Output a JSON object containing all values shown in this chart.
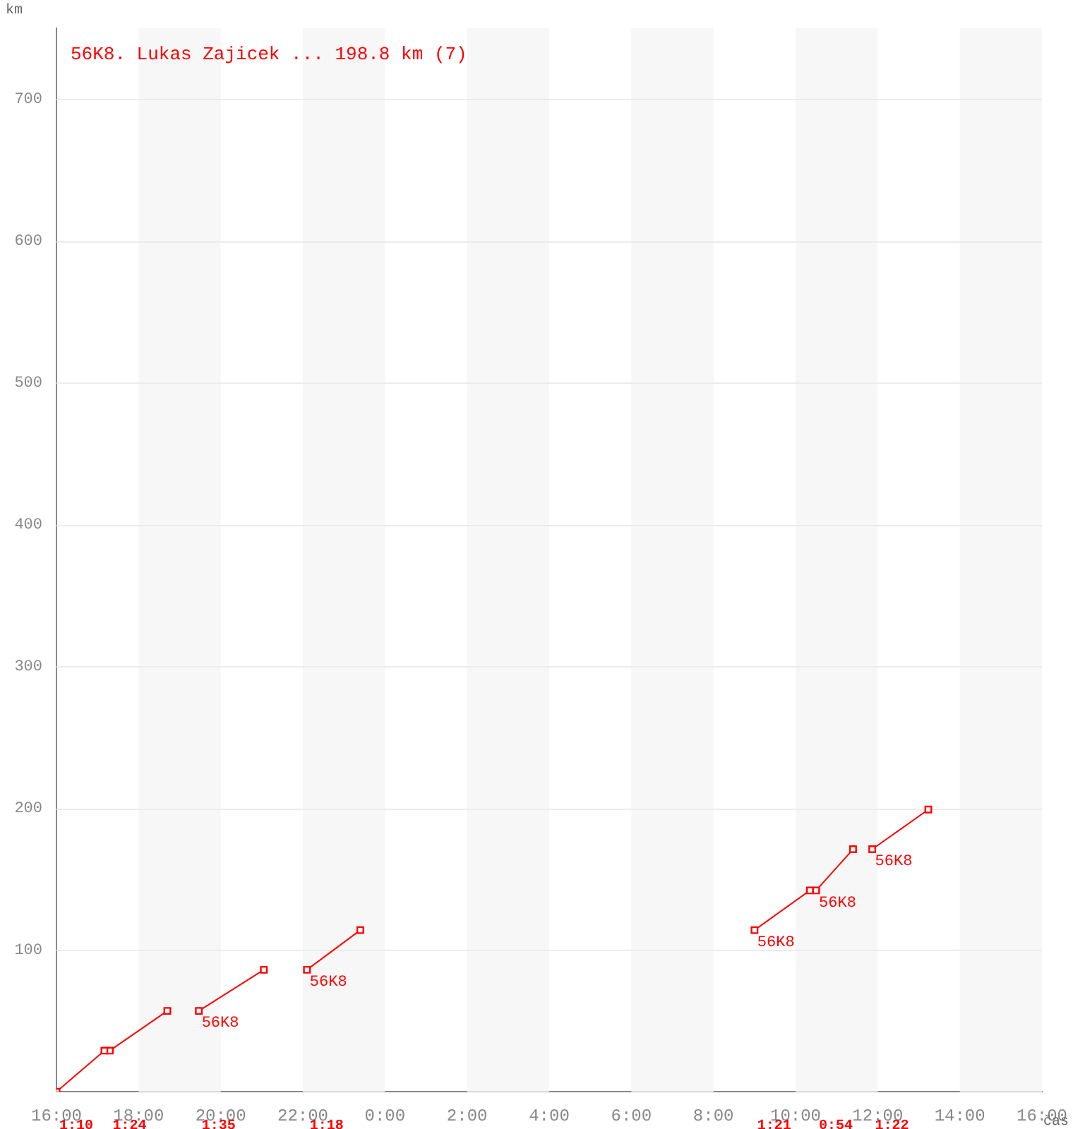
{
  "chart_data": {
    "type": "line",
    "title": "56K8. Lukas Zajicek ... 198.8 km (7)",
    "xlabel": "čas",
    "ylabel": "km",
    "xlim": [
      "--01-01T16:00",
      "--01-02T16:00"
    ],
    "xticks": [
      {
        "value": "--01-01T16:00",
        "label": "16:00"
      },
      {
        "value": "--01-01T18:00",
        "label": "18:00"
      },
      {
        "value": "--01-01T20:00",
        "label": "20:00"
      },
      {
        "value": "--01-01T22:00",
        "label": "22:00"
      },
      {
        "value": "--01-02T00:00",
        "label": "0:00"
      },
      {
        "value": "--01-02T02:00",
        "label": "2:00"
      },
      {
        "value": "--01-02T04:00",
        "label": "4:00"
      },
      {
        "value": "--01-02T06:00",
        "label": "6:00"
      },
      {
        "value": "--01-02T08:00",
        "label": "8:00"
      },
      {
        "value": "--01-02T10:00",
        "label": "10:00"
      },
      {
        "value": "--01-02T12:00",
        "label": "12:00"
      },
      {
        "value": "--01-02T14:00",
        "label": "14:00"
      },
      {
        "value": "--01-02T16:00",
        "label": "16:00"
      }
    ],
    "ylim": [
      0,
      750
    ],
    "yticks": [
      100,
      200,
      300,
      400,
      500,
      600,
      700
    ],
    "grid": "y",
    "marker": "square",
    "line_style": "solid",
    "series": [
      {
        "color": "#ff0000",
        "x": [
          "--01-01T16:00",
          "--01-01T17:10"
        ],
        "values": [
          0,
          29
        ]
      },
      {
        "color": "#ff0000",
        "x": [
          "--01-01T17:18",
          "--01-01T18:42"
        ],
        "values": [
          29,
          57
        ]
      },
      {
        "color": "#ff0000",
        "x": [
          "--01-01T19:28",
          "--01-01T21:03"
        ],
        "values": [
          57,
          86
        ]
      },
      {
        "color": "#ff0000",
        "x": [
          "--01-01T22:06",
          "--01-01T23:24"
        ],
        "values": [
          86,
          114
        ]
      },
      {
        "color": "#ff0000",
        "x": [
          "--01-02T09:00",
          "--01-02T10:21"
        ],
        "values": [
          114,
          142
        ]
      },
      {
        "color": "#ff0000",
        "x": [
          "--01-02T10:30",
          "--01-02T11:24"
        ],
        "values": [
          142,
          171
        ]
      },
      {
        "color": "#ff0000",
        "x": [
          "--01-02T11:52",
          "--01-02T13:14"
        ],
        "values": [
          171,
          199
        ]
      }
    ],
    "bands": [
      {
        "axis": "x",
        "from": "--01-01T18:00",
        "to": "--01-01T20:00",
        "color": "#f7f7f7"
      },
      {
        "axis": "x",
        "from": "--01-01T22:00",
        "to": "--01-02T00:00",
        "color": "#f7f7f7"
      },
      {
        "axis": "x",
        "from": "--01-02T02:00",
        "to": "--01-02T04:00",
        "color": "#f7f7f7"
      },
      {
        "axis": "x",
        "from": "--01-02T06:00",
        "to": "--01-02T08:00",
        "color": "#f7f7f7"
      },
      {
        "axis": "x",
        "from": "--01-02T10:00",
        "to": "--01-02T12:00",
        "color": "#f7f7f7"
      },
      {
        "axis": "x",
        "from": "--01-02T14:00",
        "to": "--01-02T16:00",
        "color": "#f7f7f7"
      }
    ],
    "annotations": [
      "1:10",
      "1:24",
      "1:35",
      "1:18",
      "1:21",
      "0:54",
      "1:22",
      {
        "text": "56K8",
        "x": "--01-01T19:28",
        "y": 57
      },
      {
        "text": "56K8",
        "x": "--01-01T22:06",
        "y": 86
      },
      {
        "text": "56K8",
        "x": "--01-02T09:00",
        "y": 114
      },
      {
        "text": "56K8",
        "x": "--01-02T10:30",
        "y": 142
      },
      {
        "text": "56K8",
        "x": "--01-02T11:52",
        "y": 171
      }
    ]
  }
}
